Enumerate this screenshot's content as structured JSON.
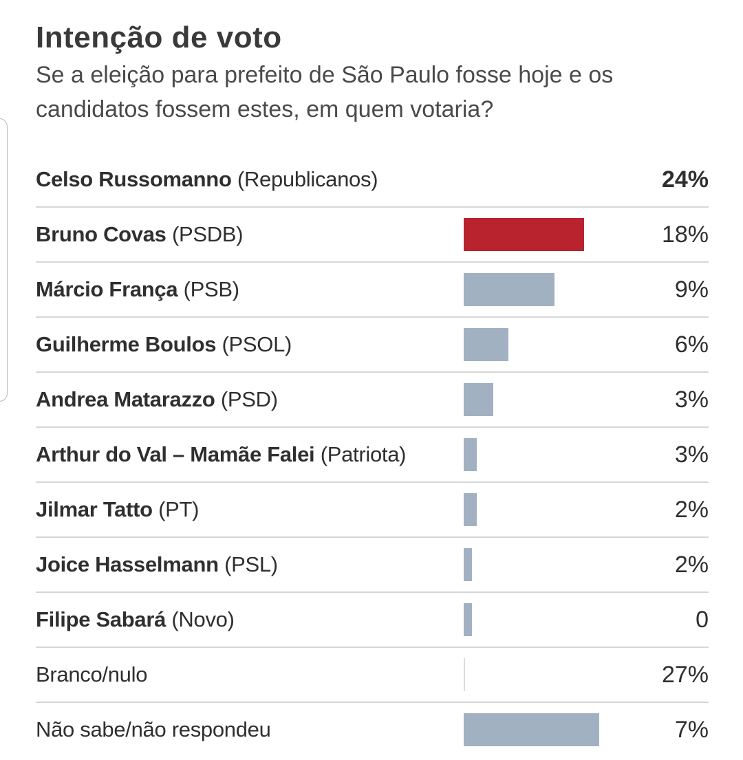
{
  "chart_data": {
    "type": "bar",
    "title": "Intenção de voto",
    "subtitle": "Se a eleição para prefeito de São Paulo fosse hoje e os candidatos fossem estes, em quem votaria?",
    "rows": [
      {
        "name": "Celso Russomanno",
        "party": "(Republicanos)",
        "value_label": "24%",
        "bar": null,
        "bold_name": true,
        "bold_value": true,
        "color": "none"
      },
      {
        "name": "Bruno Covas",
        "party": "(PSDB)",
        "value_label": "18%",
        "bar": 0.73,
        "bold_name": true,
        "bold_value": false,
        "color": "#b8232e"
      },
      {
        "name": "Márcio França",
        "party": "(PSB)",
        "value_label": "9%",
        "bar": 0.55,
        "bold_name": true,
        "bold_value": false,
        "color": "#a2b1c1"
      },
      {
        "name": "Guilherme Boulos",
        "party": "(PSOL)",
        "value_label": "6%",
        "bar": 0.27,
        "bold_name": true,
        "bold_value": false,
        "color": "#a2b1c1"
      },
      {
        "name": "Andrea Matarazzo",
        "party": "(PSD)",
        "value_label": "3%",
        "bar": 0.18,
        "bold_name": true,
        "bold_value": false,
        "color": "#a2b1c1"
      },
      {
        "name": "Arthur do Val – Mamãe Falei",
        "party": "(Patriota)",
        "value_label": "3%",
        "bar": 0.08,
        "bold_name": true,
        "bold_value": false,
        "color": "#a2b1c1"
      },
      {
        "name": "Jilmar Tatto",
        "party": "(PT)",
        "value_label": "2%",
        "bar": 0.08,
        "bold_name": true,
        "bold_value": false,
        "color": "#a2b1c1"
      },
      {
        "name": "Joice Hasselmann",
        "party": "(PSL)",
        "value_label": "2%",
        "bar": 0.05,
        "bold_name": true,
        "bold_value": false,
        "color": "#a2b1c1"
      },
      {
        "name": "Filipe Sabará",
        "party": "(Novo)",
        "value_label": "0",
        "bar": 0.05,
        "bold_name": true,
        "bold_value": false,
        "color": "#a2b1c1"
      },
      {
        "name": "Branco/nulo",
        "party": "",
        "value_label": "27%",
        "bar": 0.006,
        "bold_name": false,
        "bold_value": false,
        "color": "#d8dde3"
      },
      {
        "name": "Não sabe/não respondeu",
        "party": "",
        "value_label": "7%",
        "bar": 0.82,
        "bold_name": false,
        "bold_value": false,
        "color": "#a2b1c1"
      }
    ]
  }
}
